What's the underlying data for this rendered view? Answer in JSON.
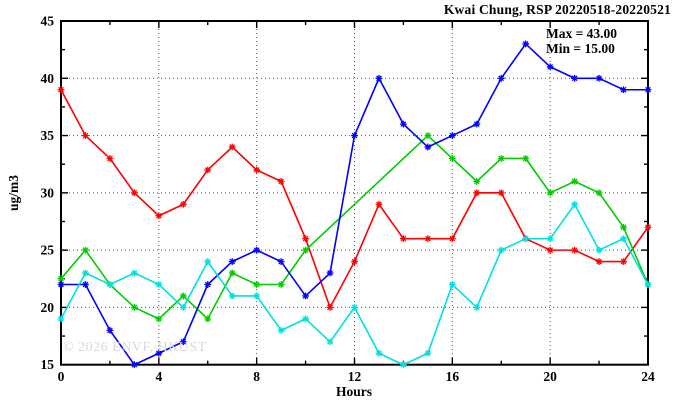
{
  "chart_data": {
    "type": "line",
    "title": "Kwai Chung, RSP 20220518-20220521",
    "xlabel": "Hours",
    "ylabel": "ug/m3",
    "xlim": [
      0,
      24
    ],
    "ylim": [
      15,
      45
    ],
    "x_ticks": [
      0,
      4,
      8,
      12,
      16,
      20,
      24
    ],
    "x_minor_ticks": [
      2,
      6,
      10,
      14,
      18,
      22
    ],
    "y_ticks": [
      15,
      20,
      25,
      30,
      35,
      40,
      45
    ],
    "y_minor_ticks": [
      17.5,
      22.5,
      27.5,
      32.5,
      37.5,
      42.5
    ],
    "grid": true,
    "legend_position": "none",
    "annotations": [
      "Max = 43.00",
      "Min = 15.00"
    ],
    "watermark": "© 2026 ENVF, HKUST",
    "x": [
      0,
      1,
      2,
      3,
      4,
      5,
      6,
      7,
      8,
      9,
      10,
      11,
      12,
      13,
      14,
      15,
      16,
      17,
      18,
      19,
      20,
      21,
      22,
      23,
      24
    ],
    "series": [
      {
        "name": "red-series",
        "color": "#ff0000",
        "values": [
          39,
          35,
          33,
          30,
          28,
          29,
          32,
          34,
          32,
          31,
          26,
          20,
          24,
          29,
          26,
          26,
          26,
          30,
          30,
          26,
          25,
          25,
          24,
          24,
          27
        ]
      },
      {
        "name": "green-series",
        "color": "#00cc00",
        "values": [
          22.5,
          25,
          22,
          20,
          19,
          21,
          19,
          23,
          22,
          22,
          25,
          null,
          null,
          null,
          null,
          35,
          33,
          31,
          33,
          33,
          30,
          31,
          30,
          27,
          22
        ]
      },
      {
        "name": "blue-series",
        "color": "#0000ff",
        "values": [
          22,
          22,
          18,
          15,
          16,
          17,
          22,
          24,
          25,
          24,
          21,
          23,
          35,
          40,
          36,
          34,
          35,
          36,
          40,
          43,
          41,
          40,
          40,
          39,
          39
        ]
      },
      {
        "name": "cyan-series",
        "color": "#00e0e0",
        "values": [
          19,
          23,
          22,
          23,
          22,
          20,
          24,
          21,
          21,
          18,
          19,
          17,
          20,
          16,
          15,
          16,
          22,
          20,
          25,
          26,
          26,
          29,
          25,
          26,
          22
        ]
      }
    ]
  }
}
